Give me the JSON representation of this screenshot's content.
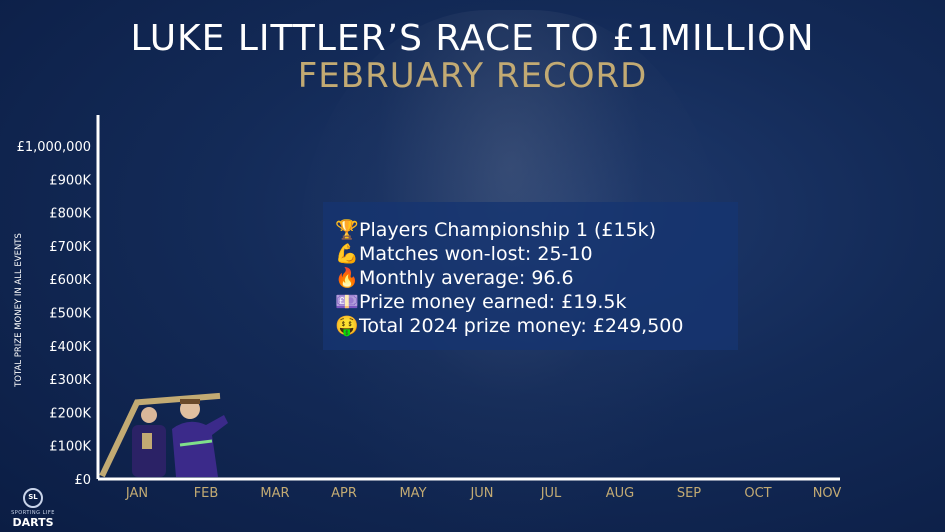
{
  "title": "LUKE LITTLER’S RACE TO £1MILLION",
  "subtitle": "FEBRUARY RECORD",
  "info_box": {
    "lines": [
      {
        "icon": "trophy-icon",
        "emoji": "🏆",
        "text": "Players Championship 1 (£15k)"
      },
      {
        "icon": "flexed-biceps-icon",
        "emoji": "💪",
        "text": "Matches won-lost: 25-10"
      },
      {
        "icon": "fire-icon",
        "emoji": "🔥",
        "text": "Monthly average: 96.6"
      },
      {
        "icon": "money-icon",
        "emoji": "💷",
        "text": "Prize money earned: £19.5k"
      },
      {
        "icon": "money-mouth-face-icon",
        "emoji": "🤑",
        "text": "Total 2024 prize money: £249,500"
      }
    ]
  },
  "logo": {
    "sl": "SL",
    "top": "SPORTING LIFE",
    "bottom": "DARTS"
  },
  "chart_data": {
    "type": "line",
    "categories": [
      "JAN",
      "FEB",
      "MAR",
      "APR",
      "MAY",
      "JUN",
      "JUL",
      "AUG",
      "SEP",
      "OCT",
      "NOV"
    ],
    "x": [
      "JAN",
      "FEB"
    ],
    "values": [
      230000,
      249500
    ],
    "y_ticks": [
      0,
      100000,
      200000,
      300000,
      400000,
      500000,
      600000,
      700000,
      800000,
      900000,
      1000000
    ],
    "y_tick_labels": [
      "£0",
      "£100K",
      "£200K",
      "£300K",
      "£400K",
      "£500K",
      "£600K",
      "£700K",
      "£800K",
      "£900K",
      "£1,000,000"
    ],
    "title": "LUKE LITTLER’S RACE TO £1MILLION",
    "subtitle": "FEBRUARY RECORD",
    "xlabel": "",
    "ylabel": "TOTAL PRIZE MONEY IN ALL EVENTS",
    "ylim": [
      0,
      1000000
    ],
    "grid": false,
    "line_color": "#c2aa73",
    "axis_color": "#ffffff"
  }
}
